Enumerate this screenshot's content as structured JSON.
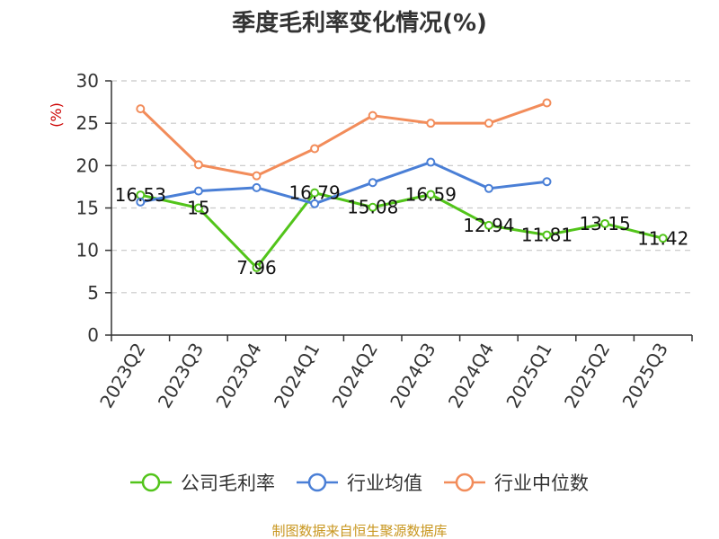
{
  "chart_data": {
    "type": "line",
    "title": "季度毛利率变化情况(%)",
    "ylabel": "(%)",
    "categories": [
      "2023Q2",
      "2023Q3",
      "2023Q4",
      "2024Q1",
      "2024Q2",
      "2024Q3",
      "2024Q4",
      "2025Q1",
      "2025Q2",
      "2025Q3"
    ],
    "yticks": [
      0,
      5,
      10,
      15,
      20,
      25,
      30
    ],
    "ylim": [
      0,
      30
    ],
    "grid": true,
    "legend_position": "bottom",
    "series": [
      {
        "name": "公司毛利率",
        "color": "#52c41a",
        "values": [
          16.53,
          15,
          7.96,
          16.79,
          15.08,
          16.59,
          12.94,
          11.81,
          13.15,
          11.42
        ],
        "labels": [
          "16.53",
          "15",
          "7.96",
          "16.79",
          "15.08",
          "16.59",
          "12.94",
          "11.81",
          "13.15",
          "11.42"
        ]
      },
      {
        "name": "行业均值",
        "color": "#4a7fd6",
        "values": [
          15.7,
          17.0,
          17.4,
          15.5,
          18.0,
          20.4,
          17.3,
          18.1,
          null,
          null
        ]
      },
      {
        "name": "行业中位数",
        "color": "#f28c5a",
        "values": [
          26.7,
          20.1,
          18.8,
          22.0,
          25.9,
          25.0,
          25.0,
          27.4,
          null,
          null
        ]
      }
    ]
  },
  "footer": {
    "source": "制图数据来自恒生聚源数据库"
  }
}
